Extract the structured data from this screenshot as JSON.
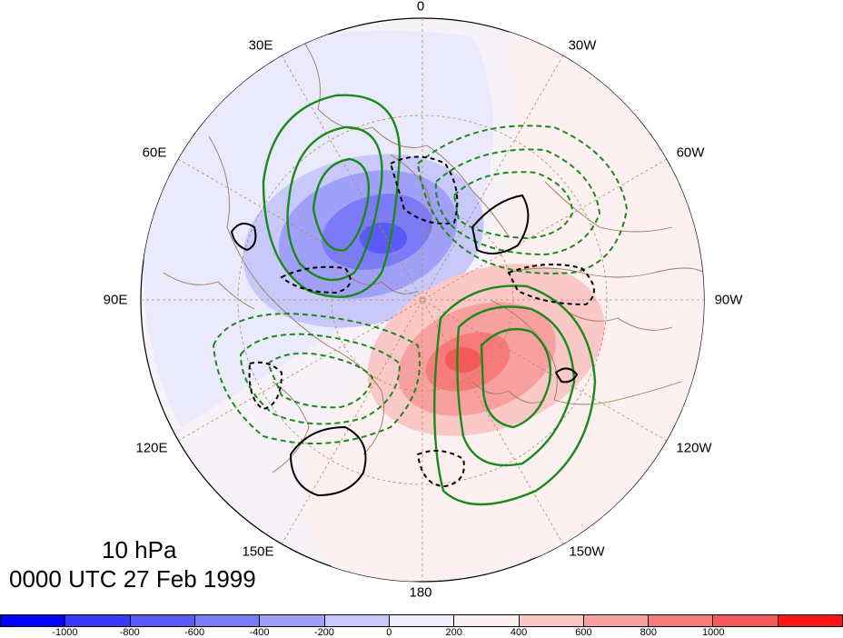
{
  "title": {
    "level": "10 hPa",
    "time": "0000 UTC 27 Feb 1999"
  },
  "longitude_labels": [
    "0",
    "30W",
    "60W",
    "90W",
    "120W",
    "150W",
    "180",
    "150E",
    "120E",
    "90E",
    "60E",
    "30E"
  ],
  "colorbar": {
    "colors": [
      "#0000ff",
      "#3a3aff",
      "#5a5af5",
      "#7b7bf7",
      "#a0a0f8",
      "#c8c8fb",
      "#f0f0fd",
      "#fdf0f0",
      "#fbc8c8",
      "#f8a0a0",
      "#f77b7b",
      "#f55a5a",
      "#ff1414"
    ],
    "ticks": [
      "-1000",
      "-800",
      "-600",
      "-400",
      "-200",
      "0",
      "200",
      "400",
      "600",
      "800",
      "1000"
    ]
  },
  "colors": {
    "positive_contour": "#1a8a1a",
    "negative_contour": "#1a8a1a",
    "black_contour": "#000000",
    "coastline": "#9a7b5a",
    "grid": "#b08a5a"
  }
}
